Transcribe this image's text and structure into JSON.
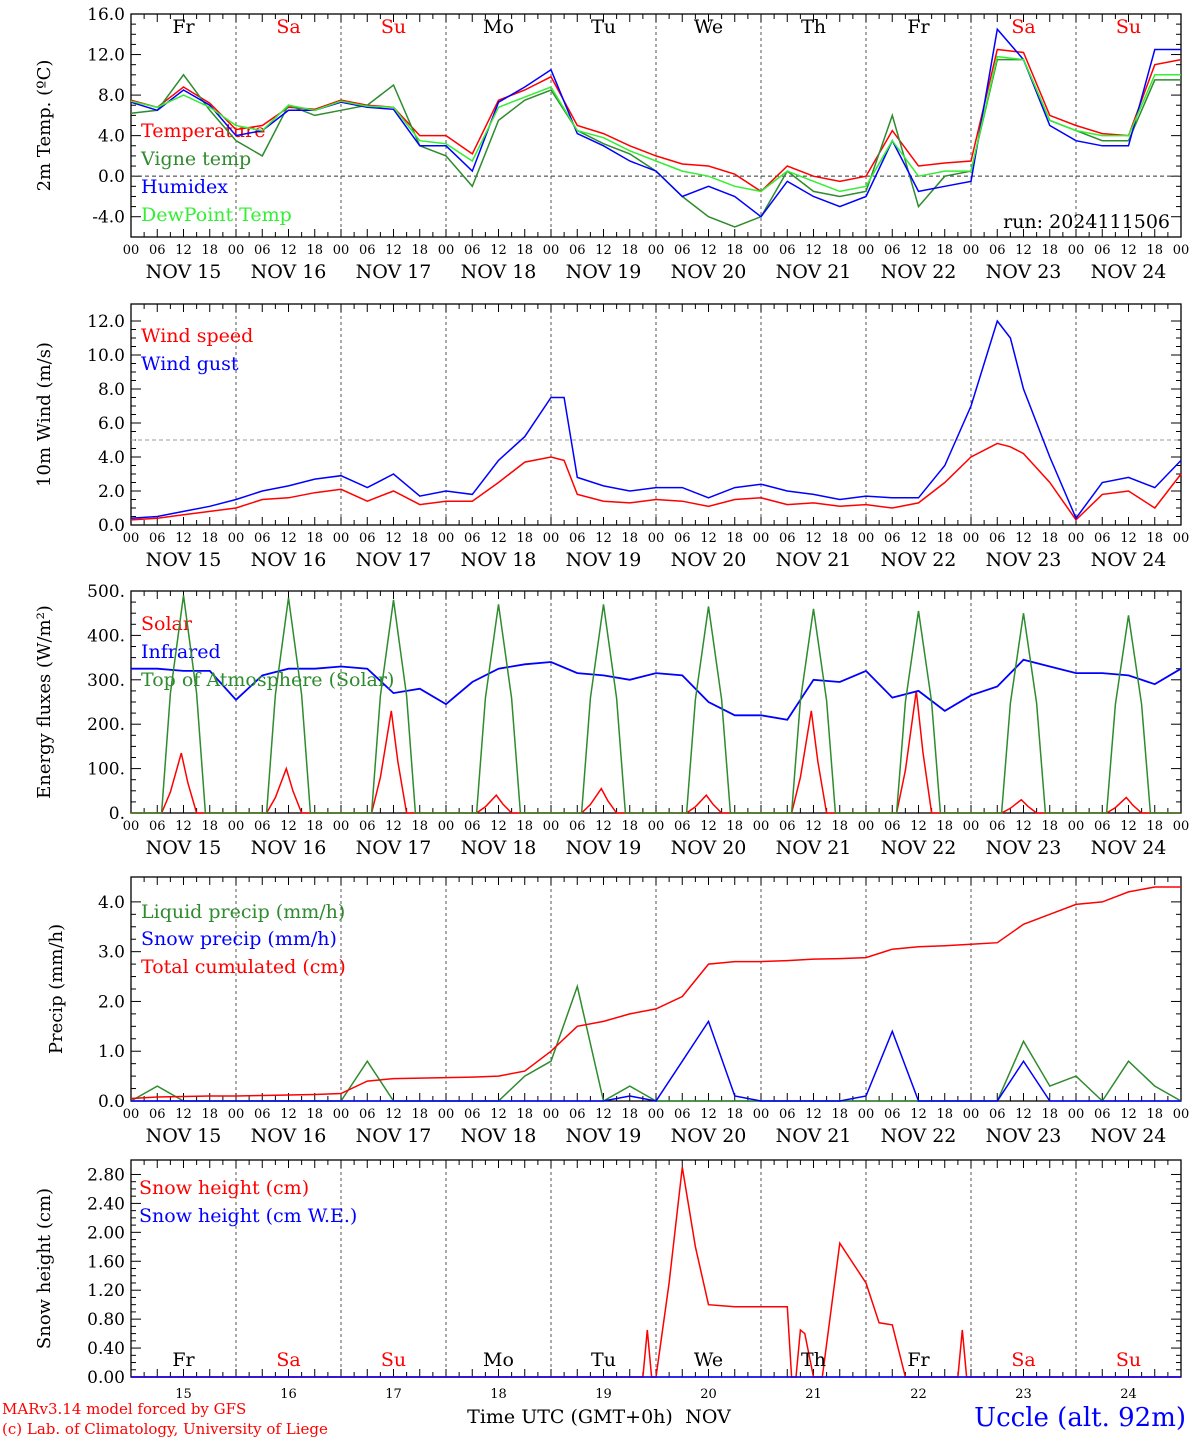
{
  "footer": {
    "model": "MARv3.14 model forced by GFS",
    "lab": "(c) Lab. of Climatology, University of Liege",
    "xlabel": "Time UTC (GMT+0h)",
    "month": "NOV",
    "station": "Uccle (alt. 92m)"
  },
  "colors": {
    "red": "#ff0000",
    "green": "#2e8b2e",
    "blue": "#0000ff",
    "lightgreen": "#33ee33",
    "grid": "#555555"
  },
  "days": {
    "names": [
      "Fr",
      "Sa",
      "Su",
      "Mo",
      "Tu",
      "We",
      "Th",
      "Fr",
      "Sa",
      "Su"
    ],
    "weekend": [
      false,
      true,
      true,
      false,
      false,
      false,
      false,
      false,
      true,
      true
    ],
    "dates": [
      "NOV 15",
      "NOV 16",
      "NOV 17",
      "NOV 18",
      "NOV 19",
      "NOV 20",
      "NOV 21",
      "NOV 22",
      "NOV 23",
      "NOV 24"
    ],
    "daynums": [
      "15",
      "16",
      "17",
      "18",
      "19",
      "20",
      "21",
      "22",
      "23",
      "24"
    ],
    "hours": [
      "00",
      "06",
      "12",
      "18"
    ],
    "final_hour": "00"
  },
  "chart_data": [
    {
      "type": "line",
      "ylabel": "2m Temp. (ºC)",
      "ylim": [
        -6,
        16
      ],
      "yticks": [
        "-4.0",
        "0.0",
        "4.0",
        "8.0",
        "12.0",
        "16.0"
      ],
      "ref_line": 0,
      "note": "run: 2024111506",
      "x_hours": [
        0,
        6,
        12,
        18,
        24,
        30,
        36,
        42,
        48,
        54,
        60,
        66,
        72,
        78,
        84,
        90,
        96,
        102,
        108,
        114,
        120,
        126,
        132,
        138,
        144,
        150,
        156,
        162,
        168,
        174,
        180,
        186,
        192,
        198,
        204,
        210,
        216,
        222,
        228,
        234,
        240
      ],
      "series": [
        {
          "name": "Temperature",
          "color": "red",
          "values": [
            7.5,
            6.8,
            8.8,
            7.2,
            4.6,
            5.0,
            6.8,
            6.6,
            7.5,
            7.0,
            6.8,
            4.0,
            4.0,
            2.2,
            7.5,
            8.5,
            9.8,
            5.0,
            4.2,
            3.0,
            2.0,
            1.2,
            1.0,
            0.2,
            -1.5,
            1.0,
            0.0,
            -0.5,
            0.0,
            4.5,
            1.0,
            1.3,
            1.5,
            12.5,
            12.2,
            6.0,
            5.0,
            4.2,
            4.0,
            11.0,
            11.5
          ]
        },
        {
          "name": "Vigne temp",
          "color": "green",
          "values": [
            6.2,
            6.5,
            10.0,
            6.5,
            3.5,
            2.0,
            7.0,
            6.0,
            6.5,
            7.0,
            9.0,
            3.0,
            2.0,
            -1.0,
            5.5,
            7.5,
            8.5,
            4.5,
            3.2,
            2.2,
            0.5,
            -2.0,
            -4.0,
            -5.0,
            -4.0,
            0.5,
            -1.5,
            -2.0,
            -1.5,
            6.0,
            -3.0,
            0.0,
            0.5,
            11.5,
            11.5,
            5.5,
            4.5,
            3.5,
            3.5,
            9.5,
            9.5
          ]
        },
        {
          "name": "Humidex",
          "color": "blue",
          "values": [
            7.3,
            6.5,
            8.5,
            7.0,
            4.0,
            4.5,
            6.5,
            6.5,
            7.3,
            6.8,
            6.6,
            3.0,
            3.0,
            0.5,
            7.3,
            8.8,
            10.5,
            4.2,
            3.0,
            1.5,
            0.5,
            -2.0,
            -1.0,
            -2.0,
            -4.0,
            -0.5,
            -2.0,
            -3.0,
            -2.0,
            3.5,
            -1.5,
            -1.0,
            -0.5,
            14.5,
            11.5,
            5.0,
            3.5,
            3.0,
            3.0,
            12.5,
            12.5
          ]
        },
        {
          "name": "DewPoint Temp",
          "color": "lightgreen",
          "values": [
            7.4,
            6.8,
            8.0,
            6.8,
            5.0,
            4.5,
            7.0,
            6.5,
            7.4,
            6.9,
            6.8,
            3.5,
            3.2,
            1.5,
            6.8,
            7.8,
            8.8,
            4.5,
            3.8,
            2.5,
            1.5,
            0.5,
            0.0,
            -1.0,
            -1.5,
            0.5,
            -0.5,
            -1.5,
            -1.0,
            3.5,
            0.0,
            0.5,
            0.5,
            11.8,
            11.5,
            5.5,
            4.5,
            4.0,
            4.0,
            10.0,
            10.0
          ]
        }
      ]
    },
    {
      "type": "line",
      "ylabel": "10m Wind (m/s)",
      "ylim": [
        0,
        13
      ],
      "yticks": [
        "0.0",
        "2.0",
        "4.0",
        "6.0",
        "8.0",
        "10.0",
        "12.0"
      ],
      "ref_line": 5,
      "x_hours": [
        0,
        6,
        12,
        18,
        24,
        30,
        36,
        42,
        48,
        54,
        60,
        66,
        72,
        78,
        84,
        90,
        96,
        99,
        102,
        108,
        114,
        120,
        126,
        132,
        138,
        144,
        150,
        156,
        162,
        168,
        174,
        180,
        186,
        192,
        198,
        201,
        204,
        210,
        216,
        222,
        228,
        234,
        240
      ],
      "series": [
        {
          "name": "Wind speed",
          "color": "red",
          "values": [
            0.3,
            0.4,
            0.6,
            0.8,
            1.0,
            1.5,
            1.6,
            1.9,
            2.1,
            1.4,
            2.0,
            1.2,
            1.4,
            1.4,
            2.5,
            3.7,
            4.0,
            3.8,
            1.8,
            1.4,
            1.3,
            1.5,
            1.4,
            1.1,
            1.5,
            1.6,
            1.2,
            1.3,
            1.1,
            1.2,
            1.0,
            1.3,
            2.5,
            4.0,
            4.8,
            4.6,
            4.2,
            2.5,
            0.3,
            1.8,
            2.0,
            1.0,
            3.0
          ]
        },
        {
          "name": "Wind gust",
          "color": "blue",
          "values": [
            0.4,
            0.5,
            0.8,
            1.1,
            1.5,
            2.0,
            2.3,
            2.7,
            2.9,
            2.2,
            3.0,
            1.7,
            2.0,
            1.8,
            3.8,
            5.2,
            7.5,
            7.5,
            2.8,
            2.3,
            2.0,
            2.2,
            2.2,
            1.6,
            2.2,
            2.4,
            2.0,
            1.8,
            1.5,
            1.7,
            1.6,
            1.6,
            3.5,
            7.0,
            12.0,
            11.0,
            8.0,
            4.0,
            0.4,
            2.5,
            2.8,
            2.2,
            3.8
          ]
        }
      ]
    },
    {
      "type": "line",
      "ylabel": "Energy fluxes (W/m²)",
      "ylim": [
        0,
        500
      ],
      "yticks": [
        "0.",
        "100.",
        "200.",
        "300.",
        "400.",
        "500."
      ],
      "series": [
        {
          "name": "Solar",
          "color": "red",
          "peaks": [
            135,
            100,
            230,
            40,
            55,
            40,
            230,
            275,
            30,
            35
          ]
        },
        {
          "name": "Infrared",
          "color": "blue",
          "x_hours": [
            0,
            6,
            12,
            18,
            24,
            30,
            36,
            42,
            48,
            54,
            60,
            66,
            72,
            78,
            84,
            90,
            96,
            102,
            108,
            114,
            120,
            126,
            132,
            138,
            144,
            150,
            156,
            162,
            168,
            174,
            180,
            186,
            192,
            198,
            204,
            210,
            216,
            222,
            228,
            234,
            240
          ],
          "values": [
            325,
            325,
            320,
            320,
            255,
            310,
            325,
            325,
            330,
            325,
            270,
            280,
            245,
            295,
            325,
            335,
            340,
            315,
            310,
            300,
            315,
            310,
            250,
            220,
            220,
            210,
            300,
            295,
            320,
            260,
            275,
            230,
            265,
            285,
            345,
            330,
            315,
            315,
            310,
            290,
            325
          ]
        },
        {
          "name": "Top of Atmosphere (Solar)",
          "color": "green",
          "peaks": [
            490,
            485,
            480,
            470,
            470,
            465,
            460,
            455,
            450,
            445
          ]
        }
      ]
    },
    {
      "type": "line",
      "ylabel": "Precip (mm/h)",
      "ylim": [
        0,
        4.5
      ],
      "yticks": [
        "0.0",
        "1.0",
        "2.0",
        "3.0",
        "4.0"
      ],
      "x_hours": [
        0,
        6,
        12,
        18,
        24,
        30,
        36,
        42,
        48,
        54,
        60,
        66,
        72,
        78,
        84,
        90,
        96,
        102,
        108,
        114,
        120,
        126,
        132,
        138,
        144,
        150,
        156,
        162,
        168,
        174,
        180,
        186,
        192,
        198,
        204,
        210,
        216,
        222,
        228,
        234,
        240
      ],
      "series": [
        {
          "name": "Liquid precip (mm/h)",
          "color": "green",
          "values": [
            0.0,
            0.3,
            0.0,
            0.0,
            0.0,
            0.0,
            0.0,
            0.0,
            0.0,
            0.8,
            0.0,
            0.0,
            0.0,
            0.0,
            0.0,
            0.5,
            0.8,
            2.3,
            0.0,
            0.3,
            0.0,
            0.0,
            0.0,
            0.0,
            0.0,
            0.0,
            0.0,
            0.0,
            0.0,
            0.0,
            0.0,
            0.0,
            0.0,
            0.0,
            1.2,
            0.3,
            0.5,
            0.0,
            0.8,
            0.3,
            0.0
          ]
        },
        {
          "name": "Snow precip (mm/h)",
          "color": "blue",
          "values": [
            0.0,
            0.0,
            0.0,
            0.0,
            0.0,
            0.0,
            0.0,
            0.0,
            0.0,
            0.0,
            0.0,
            0.0,
            0.0,
            0.0,
            0.0,
            0.0,
            0.0,
            0.0,
            0.0,
            0.1,
            0.0,
            0.8,
            1.6,
            0.1,
            0.0,
            0.0,
            0.0,
            0.0,
            0.1,
            1.4,
            0.0,
            0.0,
            0.0,
            0.0,
            0.8,
            0.0,
            0.0,
            0.0,
            0.0,
            0.0,
            0.0
          ]
        },
        {
          "name": "Total cumulated (cm)",
          "color": "red",
          "values": [
            0.05,
            0.08,
            0.09,
            0.1,
            0.1,
            0.11,
            0.12,
            0.13,
            0.15,
            0.4,
            0.45,
            0.46,
            0.47,
            0.48,
            0.5,
            0.6,
            1.0,
            1.5,
            1.6,
            1.75,
            1.85,
            2.1,
            2.75,
            2.8,
            2.8,
            2.82,
            2.85,
            2.86,
            2.88,
            3.05,
            3.1,
            3.12,
            3.15,
            3.18,
            3.55,
            3.75,
            3.95,
            4.0,
            4.2,
            4.3,
            4.3
          ]
        }
      ]
    },
    {
      "type": "line",
      "ylabel": "Snow height (cm)",
      "ylim": [
        0,
        3.0
      ],
      "yticks": [
        "0.00",
        "0.40",
        "0.80",
        "1.20",
        "1.60",
        "2.00",
        "2.40",
        "2.80"
      ],
      "x_hours": [
        0,
        117,
        118,
        119,
        120,
        123,
        126,
        129,
        132,
        138,
        144,
        150,
        151,
        152,
        153,
        154,
        156,
        157,
        158,
        162,
        168,
        171,
        174,
        177,
        180,
        183,
        189,
        190,
        191,
        192,
        240
      ],
      "series": [
        {
          "name": "Snow height (cm)",
          "color": "red",
          "values": [
            0,
            0,
            0.65,
            0,
            0,
            1.3,
            2.9,
            1.8,
            1.0,
            0.97,
            0.97,
            0.97,
            0,
            0,
            0.65,
            0.6,
            0,
            0,
            0,
            1.85,
            1.3,
            0.75,
            0.72,
            0,
            0,
            0,
            0,
            0.65,
            0,
            0,
            0
          ]
        },
        {
          "name": "Snow height (cm W.E.)",
          "color": "blue",
          "values": [
            0,
            0,
            0,
            0,
            0,
            0,
            0,
            0,
            0,
            0,
            0,
            0,
            0,
            0,
            0,
            0,
            0,
            0,
            0,
            0,
            0,
            0,
            0,
            0,
            0,
            0,
            0,
            0,
            0,
            0,
            0
          ]
        }
      ]
    }
  ]
}
